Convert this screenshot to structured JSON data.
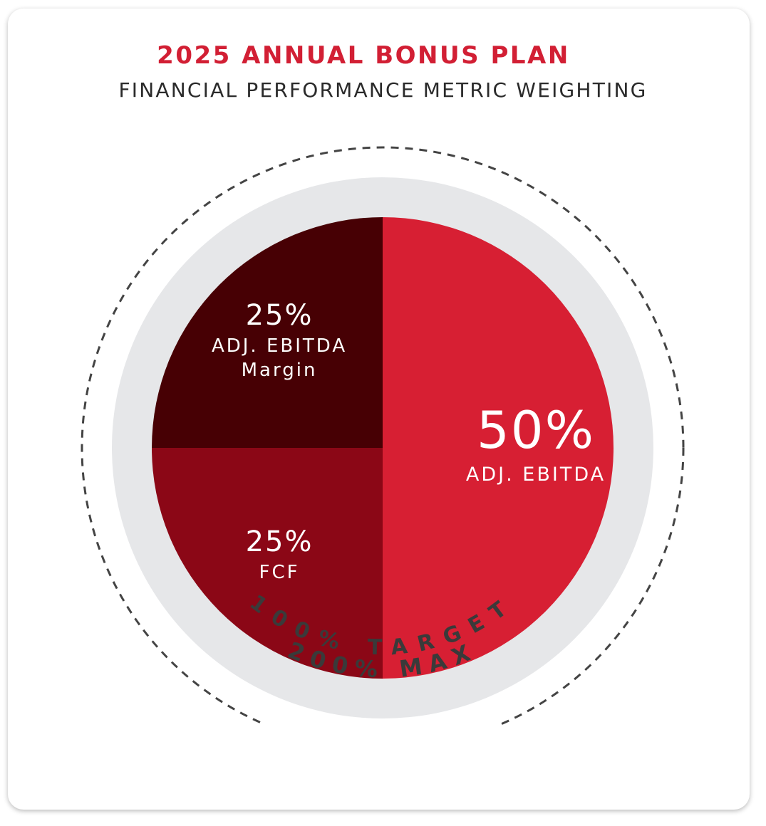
{
  "header": {
    "title": "2025 ANNUAL BONUS PLAN",
    "subtitle": "FINANCIAL PERFORMANCE METRIC WEIGHTING"
  },
  "colors": {
    "title": "#d21f34",
    "ring": "#e6e7e9",
    "dashed_ring": "#444444"
  },
  "chart_data": {
    "type": "pie",
    "title": "2025 ANNUAL BONUS PLAN",
    "subtitle": "FINANCIAL PERFORMANCE METRIC WEIGHTING",
    "slices": [
      {
        "percent_label": "50%",
        "name_lines": [
          "ADJ. EBITDA"
        ],
        "value": 50,
        "color": "#d71f33"
      },
      {
        "percent_label": "25%",
        "name_lines": [
          "FCF"
        ],
        "value": 25,
        "color": "#8b0716"
      },
      {
        "percent_label": "25%",
        "name_lines": [
          "ADJ. EBITDA",
          "Margin"
        ],
        "value": 25,
        "color": "#470004"
      }
    ],
    "ring_labels": {
      "inner": "100% TARGET",
      "outer": "200% MAX"
    }
  }
}
